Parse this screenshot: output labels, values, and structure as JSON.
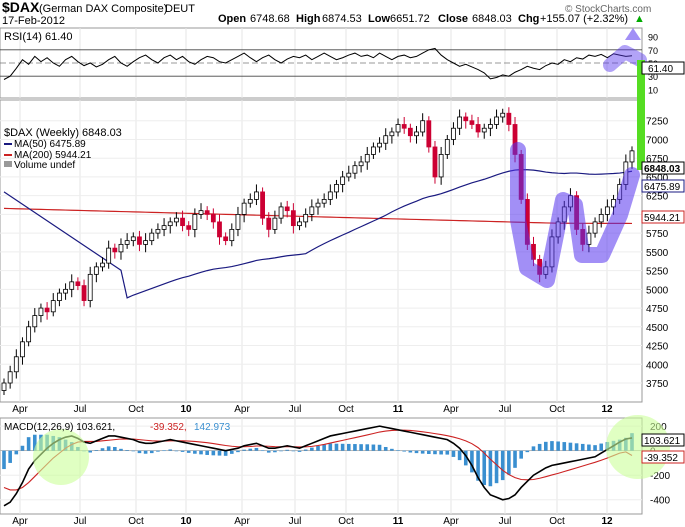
{
  "header": {
    "symbol": "$DAX",
    "name": "(German DAX Composite)",
    "exchange": "DEUT",
    "date": "17-Feb-2012",
    "open_label": "Open",
    "open": "6748.68",
    "high_label": "High",
    "high": "6874.53",
    "low_label": "Low",
    "low": "6651.72",
    "close_label": "Close",
    "close": "6848.03",
    "chg_label": "Chg",
    "chg": "+155.07 (+2.32%)",
    "chg_arrow": "▲"
  },
  "watermark": "© StockCharts.com",
  "colors": {
    "up": "#0000ff",
    "down": "#cc0033",
    "ma50": "#1a1a80",
    "ma200": "#cc2222",
    "macd": "#000000",
    "signal": "#cc2222",
    "hist": "#3a8fd0",
    "highlight_blue": "#5533ee",
    "highlight_green": "#55dd22",
    "glow_green": "#ccff99"
  },
  "chart_data": [
    {
      "type": "line",
      "panel": "RSI",
      "legend": "RSI(14) 61.40",
      "ylim": [
        0,
        100
      ],
      "y_ticks": [
        "90",
        "70",
        "50",
        "30",
        "10"
      ],
      "value_label": "61.40",
      "reference_lines": [
        70,
        30
      ],
      "values": [
        25,
        30,
        42,
        55,
        48,
        60,
        52,
        58,
        50,
        45,
        55,
        60,
        52,
        46,
        50,
        44,
        48,
        55,
        60,
        50,
        45,
        52,
        58,
        62,
        55,
        50,
        58,
        62,
        55,
        60,
        52,
        48,
        55,
        60,
        58,
        52,
        50,
        55,
        60,
        65,
        58,
        52,
        58,
        62,
        55,
        50,
        56,
        60,
        58,
        62,
        55,
        60,
        65,
        60,
        55,
        58,
        62,
        65,
        60,
        62,
        58,
        65,
        60,
        55,
        60,
        62,
        58,
        60,
        65,
        70,
        72,
        62,
        55,
        50,
        45,
        48,
        44,
        40,
        35,
        26,
        28,
        32,
        30,
        36,
        40,
        45,
        42,
        40,
        46,
        50,
        48,
        55,
        52,
        58,
        56,
        62,
        60,
        63,
        58,
        64,
        62,
        60,
        61
      ]
    },
    {
      "type": "candlestick",
      "panel": "Price",
      "title": "$DAX (Weekly) 6848.03",
      "series": [
        {
          "name": "MA(50) 6475.89",
          "current": "6475.89"
        },
        {
          "name": "MA(200) 5944.21",
          "current": "5944.21"
        },
        {
          "name": "Volume undef"
        }
      ],
      "last_price_label": "6848.03",
      "ylim": [
        3550,
        7500
      ],
      "y_ticks": [
        3750,
        4000,
        4250,
        4500,
        4750,
        5000,
        5250,
        5500,
        5750,
        6000,
        6250,
        6500,
        6750,
        7000,
        7250
      ],
      "x_labels": [
        "Apr",
        "Jul",
        "Oct",
        "10",
        "Apr",
        "Jul",
        "Oct",
        "11",
        "Apr",
        "Jul",
        "Oct",
        "12"
      ],
      "close": [
        3750,
        3900,
        4100,
        4300,
        4500,
        4650,
        4750,
        4700,
        4850,
        4950,
        5000,
        5100,
        5050,
        4850,
        5200,
        5300,
        5350,
        5550,
        5500,
        5600,
        5650,
        5700,
        5600,
        5650,
        5750,
        5800,
        5850,
        5900,
        5950,
        5850,
        5800,
        6000,
        6050,
        6000,
        5900,
        5700,
        5650,
        5800,
        6000,
        6150,
        6200,
        6300,
        5950,
        5800,
        5950,
        6100,
        6050,
        5850,
        5900,
        6000,
        6100,
        6150,
        6200,
        6300,
        6400,
        6500,
        6550,
        6650,
        6700,
        6800,
        6900,
        6950,
        7050,
        7100,
        7200,
        7150,
        7050,
        7100,
        7250,
        6900,
        6500,
        6800,
        7000,
        7150,
        7300,
        7250,
        7200,
        7100,
        7150,
        7200,
        7300,
        7350,
        7200,
        6800,
        6200,
        5600,
        5400,
        5200,
        5300,
        5700,
        5900,
        6100,
        6250,
        5800,
        5600,
        5750,
        5900,
        6000,
        6100,
        6200,
        6400,
        6700,
        6848
      ]
    },
    {
      "type": "line",
      "panel": "MACD",
      "legend": "MACD(12,26,9) 103.621, -39.352, 142.973",
      "legend_macd": "MACD(12,26,9) 103.621,",
      "legend_signal": "-39.352,",
      "legend_hist": "142.973",
      "ylim": [
        -500,
        250
      ],
      "y_ticks": [
        "200",
        "0",
        "-200",
        "-400"
      ],
      "value_labels": [
        "103.621",
        "-39.352"
      ],
      "x_labels": [
        "Apr",
        "Jul",
        "Oct",
        "10",
        "Apr",
        "Jul",
        "Oct",
        "11",
        "Apr",
        "Jul",
        "Oct",
        "12"
      ],
      "macd": [
        -450,
        -420,
        -350,
        -260,
        -150,
        -80,
        -30,
        20,
        60,
        90,
        110,
        120,
        100,
        70,
        60,
        80,
        100,
        120,
        120,
        110,
        100,
        90,
        70,
        60,
        60,
        70,
        80,
        90,
        80,
        70,
        60,
        50,
        40,
        30,
        20,
        10,
        0,
        10,
        20,
        40,
        50,
        60,
        40,
        20,
        20,
        30,
        40,
        30,
        20,
        40,
        60,
        80,
        100,
        120,
        130,
        140,
        150,
        160,
        170,
        180,
        190,
        200,
        190,
        180,
        170,
        160,
        150,
        140,
        130,
        120,
        110,
        100,
        90,
        60,
        20,
        -40,
        -120,
        -220,
        -300,
        -360,
        -380,
        -400,
        -390,
        -360,
        -300,
        -250,
        -200,
        -170,
        -140,
        -120,
        -110,
        -100,
        -90,
        -80,
        -70,
        -60,
        -50,
        -20,
        10,
        40,
        70,
        95,
        103.621
      ],
      "signal": [
        -300,
        -320,
        -320,
        -300,
        -260,
        -210,
        -160,
        -110,
        -60,
        -20,
        20,
        50,
        70,
        75,
        75,
        75,
        80,
        85,
        90,
        95,
        95,
        95,
        90,
        85,
        80,
        78,
        78,
        80,
        80,
        80,
        78,
        75,
        70,
        65,
        58,
        50,
        42,
        36,
        32,
        32,
        34,
        38,
        38,
        36,
        33,
        32,
        33,
        32,
        30,
        31,
        35,
        42,
        51,
        62,
        73,
        84,
        95,
        106,
        117,
        128,
        140,
        152,
        160,
        165,
        167,
        167,
        165,
        160,
        154,
        147,
        139,
        131,
        122,
        111,
        97,
        80,
        57,
        25,
        -20,
        -70,
        -115,
        -160,
        -195,
        -220,
        -235,
        -238,
        -235,
        -225,
        -212,
        -198,
        -185,
        -170,
        -155,
        -140,
        -125,
        -110,
        -95,
        -78,
        -60,
        -40,
        -20,
        -10,
        -39.352
      ]
    }
  ]
}
